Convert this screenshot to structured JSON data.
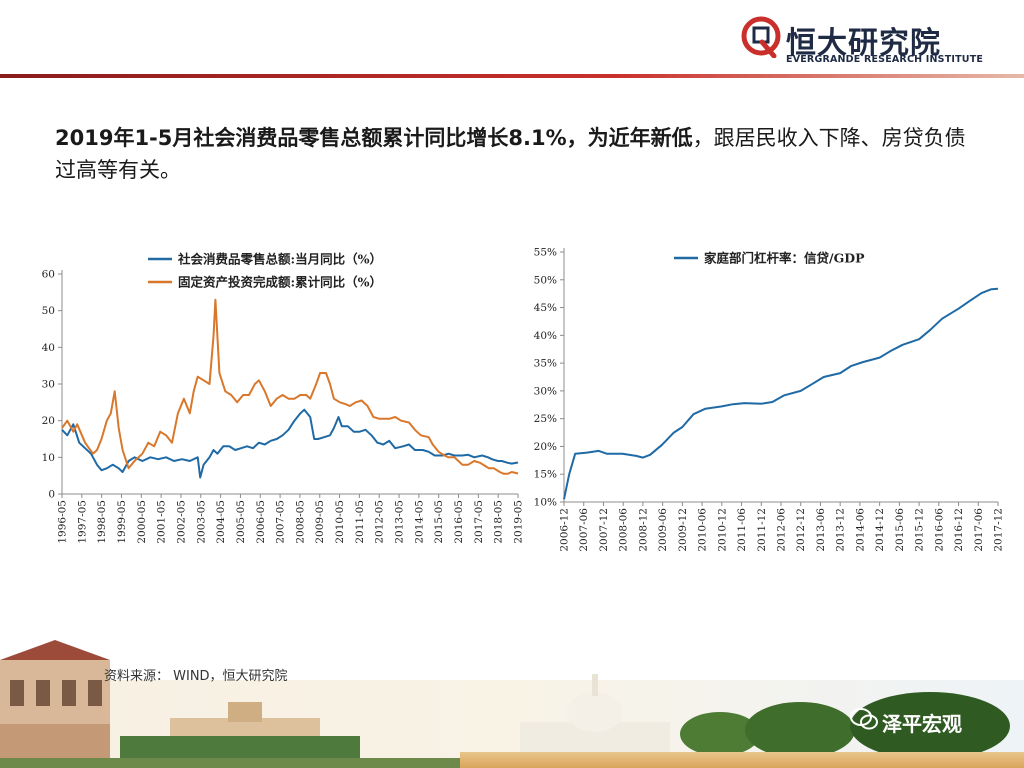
{
  "header": {
    "logo_cn": "恒大研究院",
    "logo_en": "EVERGRANDE RESEARCH INSTITUTE"
  },
  "headline": {
    "bold_part": "2019年1-5月社会消费品零售总额累计同比增长8.1%，为近年新低",
    "normal_part": "，跟居民收入下降、房贷负债过高等有关。"
  },
  "footer": {
    "source": "资料来源： WIND，恒大研究院",
    "wechat": "泽平宏观"
  },
  "colors": {
    "blue": "#1f6aa5",
    "orange": "#d9772b",
    "brand_red": "#c9302c",
    "brand_navy": "#1f2a44"
  },
  "chart_data": [
    {
      "type": "line",
      "y_ticks": [
        "0",
        "10",
        "20",
        "30",
        "40",
        "50",
        "60"
      ],
      "ylim": [
        0,
        60
      ],
      "x_ticks": [
        "1996-05",
        "1997-05",
        "1998-05",
        "1999-05",
        "2000-05",
        "2001-05",
        "2002-05",
        "2003-05",
        "2004-05",
        "2005-05",
        "2006-05",
        "2007-05",
        "2008-05",
        "2009-05",
        "2010-05",
        "2011-05",
        "2012-05",
        "2013-05",
        "2014-05",
        "2015-05",
        "2016-05",
        "2017-05",
        "2018-05",
        "2019-05"
      ],
      "xlim": [
        1996.33,
        2019.42
      ],
      "legend_position": "top",
      "series": [
        {
          "name": "社会消费品零售总额:当月同比（%）",
          "color": "#1f6aa5",
          "points": [
            [
              1996.33,
              17.5
            ],
            [
              1996.6,
              16
            ],
            [
              1996.9,
              19
            ],
            [
              1997.2,
              14
            ],
            [
              1997.5,
              12.5
            ],
            [
              1997.8,
              11
            ],
            [
              1998.1,
              8
            ],
            [
              1998.33,
              6.5
            ],
            [
              1998.6,
              7
            ],
            [
              1998.9,
              8
            ],
            [
              1999.2,
              7
            ],
            [
              1999.4,
              6
            ],
            [
              1999.7,
              9
            ],
            [
              2000.0,
              10
            ],
            [
              2000.4,
              9
            ],
            [
              2000.8,
              10
            ],
            [
              2001.2,
              9.5
            ],
            [
              2001.6,
              10
            ],
            [
              2002.0,
              9
            ],
            [
              2002.4,
              9.5
            ],
            [
              2002.8,
              9
            ],
            [
              2003.2,
              10
            ],
            [
              2003.33,
              4.5
            ],
            [
              2003.5,
              8
            ],
            [
              2003.8,
              10
            ],
            [
              2004.0,
              12
            ],
            [
              2004.2,
              11
            ],
            [
              2004.5,
              13
            ],
            [
              2004.8,
              13
            ],
            [
              2005.1,
              12
            ],
            [
              2005.4,
              12.5
            ],
            [
              2005.7,
              13
            ],
            [
              2006.0,
              12.5
            ],
            [
              2006.3,
              14
            ],
            [
              2006.6,
              13.5
            ],
            [
              2006.9,
              14.5
            ],
            [
              2007.2,
              15
            ],
            [
              2007.5,
              16
            ],
            [
              2007.8,
              17.5
            ],
            [
              2008.1,
              20
            ],
            [
              2008.4,
              22
            ],
            [
              2008.6,
              23
            ],
            [
              2008.9,
              21
            ],
            [
              2009.1,
              15
            ],
            [
              2009.3,
              15
            ],
            [
              2009.6,
              15.5
            ],
            [
              2009.9,
              16
            ],
            [
              2010.1,
              18
            ],
            [
              2010.33,
              21
            ],
            [
              2010.5,
              18.5
            ],
            [
              2010.8,
              18.5
            ],
            [
              2011.1,
              17
            ],
            [
              2011.4,
              17
            ],
            [
              2011.7,
              17.5
            ],
            [
              2012.0,
              16
            ],
            [
              2012.3,
              14
            ],
            [
              2012.6,
              13.5
            ],
            [
              2012.9,
              14.5
            ],
            [
              2013.2,
              12.5
            ],
            [
              2013.6,
              13
            ],
            [
              2013.9,
              13.5
            ],
            [
              2014.2,
              12
            ],
            [
              2014.6,
              12
            ],
            [
              2014.9,
              11.5
            ],
            [
              2015.2,
              10.5
            ],
            [
              2015.6,
              10.5
            ],
            [
              2015.9,
              11
            ],
            [
              2016.2,
              10.5
            ],
            [
              2016.6,
              10.5
            ],
            [
              2016.9,
              10.7
            ],
            [
              2017.2,
              10
            ],
            [
              2017.6,
              10.5
            ],
            [
              2017.9,
              10
            ],
            [
              2018.1,
              9.5
            ],
            [
              2018.4,
              9
            ],
            [
              2018.6,
              9
            ],
            [
              2018.9,
              8.5
            ],
            [
              2019.1,
              8.3
            ],
            [
              2019.42,
              8.6
            ]
          ]
        },
        {
          "name": "固定资产投资完成额:累计同比（%）",
          "color": "#d9772b",
          "points": [
            [
              1996.33,
              18
            ],
            [
              1996.6,
              20
            ],
            [
              1996.9,
              17
            ],
            [
              1997.1,
              19
            ],
            [
              1997.5,
              14
            ],
            [
              1997.9,
              11
            ],
            [
              1998.1,
              12
            ],
            [
              1998.33,
              15
            ],
            [
              1998.6,
              20
            ],
            [
              1998.8,
              22
            ],
            [
              1999.0,
              28
            ],
            [
              1999.2,
              18
            ],
            [
              1999.4,
              12
            ],
            [
              1999.7,
              7
            ],
            [
              2000.0,
              9
            ],
            [
              2000.4,
              11
            ],
            [
              2000.7,
              14
            ],
            [
              2001.0,
              13
            ],
            [
              2001.3,
              17
            ],
            [
              2001.6,
              16
            ],
            [
              2001.9,
              14
            ],
            [
              2002.2,
              22
            ],
            [
              2002.5,
              26
            ],
            [
              2002.8,
              22
            ],
            [
              2003.0,
              28
            ],
            [
              2003.2,
              32
            ],
            [
              2003.5,
              31
            ],
            [
              2003.8,
              30
            ],
            [
              2004.0,
              43
            ],
            [
              2004.1,
              53
            ],
            [
              2004.3,
              33
            ],
            [
              2004.6,
              28
            ],
            [
              2004.9,
              27
            ],
            [
              2005.2,
              25
            ],
            [
              2005.5,
              27
            ],
            [
              2005.8,
              27
            ],
            [
              2006.1,
              30
            ],
            [
              2006.3,
              31
            ],
            [
              2006.6,
              28
            ],
            [
              2006.9,
              24
            ],
            [
              2007.2,
              26
            ],
            [
              2007.5,
              27
            ],
            [
              2007.8,
              26
            ],
            [
              2008.1,
              26
            ],
            [
              2008.4,
              27
            ],
            [
              2008.7,
              27
            ],
            [
              2008.9,
              26
            ],
            [
              2009.2,
              30
            ],
            [
              2009.4,
              33
            ],
            [
              2009.7,
              33
            ],
            [
              2009.9,
              30
            ],
            [
              2010.1,
              26
            ],
            [
              2010.4,
              25
            ],
            [
              2010.7,
              24.5
            ],
            [
              2010.9,
              24
            ],
            [
              2011.2,
              25
            ],
            [
              2011.5,
              25.5
            ],
            [
              2011.8,
              24
            ],
            [
              2012.1,
              21
            ],
            [
              2012.4,
              20.5
            ],
            [
              2012.7,
              20.5
            ],
            [
              2012.9,
              20.5
            ],
            [
              2013.2,
              21
            ],
            [
              2013.5,
              20
            ],
            [
              2013.9,
              19.5
            ],
            [
              2014.2,
              17.5
            ],
            [
              2014.5,
              16
            ],
            [
              2014.9,
              15.5
            ],
            [
              2015.1,
              13.5
            ],
            [
              2015.4,
              11.5
            ],
            [
              2015.7,
              10.5
            ],
            [
              2015.9,
              10
            ],
            [
              2016.2,
              10
            ],
            [
              2016.4,
              9
            ],
            [
              2016.6,
              8
            ],
            [
              2016.9,
              8
            ],
            [
              2017.2,
              9
            ],
            [
              2017.5,
              8.5
            ],
            [
              2017.8,
              7.5
            ],
            [
              2017.95,
              7
            ],
            [
              2018.2,
              7
            ],
            [
              2018.5,
              6
            ],
            [
              2018.7,
              5.5
            ],
            [
              2018.9,
              5.5
            ],
            [
              2019.1,
              6
            ],
            [
              2019.42,
              5.6
            ]
          ]
        }
      ]
    },
    {
      "type": "line",
      "y_ticks": [
        "10%",
        "15%",
        "20%",
        "25%",
        "30%",
        "35%",
        "40%",
        "45%",
        "50%",
        "55%"
      ],
      "ylim": [
        10,
        55
      ],
      "x_ticks": [
        "2006-12",
        "2007-06",
        "2007-12",
        "2008-06",
        "2008-12",
        "2009-06",
        "2009-12",
        "2010-06",
        "2010-12",
        "2011-06",
        "2011-12",
        "2012-06",
        "2012-12",
        "2013-06",
        "2013-12",
        "2014-06",
        "2014-12",
        "2015-06",
        "2015-12",
        "2016-06",
        "2016-12",
        "2017-06",
        "2017-12"
      ],
      "xlim": [
        2006.917,
        2017.917
      ],
      "legend_position": "top",
      "series": [
        {
          "name": "家庭部门杠杆率：信贷/GDP",
          "color": "#1f6aa5",
          "points": [
            [
              2006.917,
              10.5
            ],
            [
              2007.05,
              15
            ],
            [
              2007.2,
              18.7
            ],
            [
              2007.5,
              18.9
            ],
            [
              2007.8,
              19.2
            ],
            [
              2008.0,
              18.7
            ],
            [
              2008.4,
              18.7
            ],
            [
              2008.75,
              18.3
            ],
            [
              2008.917,
              18.0
            ],
            [
              2009.1,
              18.5
            ],
            [
              2009.4,
              20.3
            ],
            [
              2009.7,
              22.5
            ],
            [
              2009.917,
              23.5
            ],
            [
              2010.2,
              25.8
            ],
            [
              2010.5,
              26.8
            ],
            [
              2010.917,
              27.2
            ],
            [
              2011.2,
              27.6
            ],
            [
              2011.5,
              27.8
            ],
            [
              2011.917,
              27.7
            ],
            [
              2012.2,
              28.0
            ],
            [
              2012.5,
              29.2
            ],
            [
              2012.917,
              30.0
            ],
            [
              2013.2,
              31.2
            ],
            [
              2013.5,
              32.5
            ],
            [
              2013.917,
              33.2
            ],
            [
              2014.2,
              34.5
            ],
            [
              2014.5,
              35.2
            ],
            [
              2014.917,
              36.0
            ],
            [
              2015.2,
              37.2
            ],
            [
              2015.5,
              38.3
            ],
            [
              2015.917,
              39.3
            ],
            [
              2016.2,
              41.0
            ],
            [
              2016.5,
              43.0
            ],
            [
              2016.917,
              44.8
            ],
            [
              2017.2,
              46.2
            ],
            [
              2017.5,
              47.6
            ],
            [
              2017.75,
              48.3
            ],
            [
              2017.917,
              48.4
            ]
          ]
        }
      ]
    }
  ]
}
